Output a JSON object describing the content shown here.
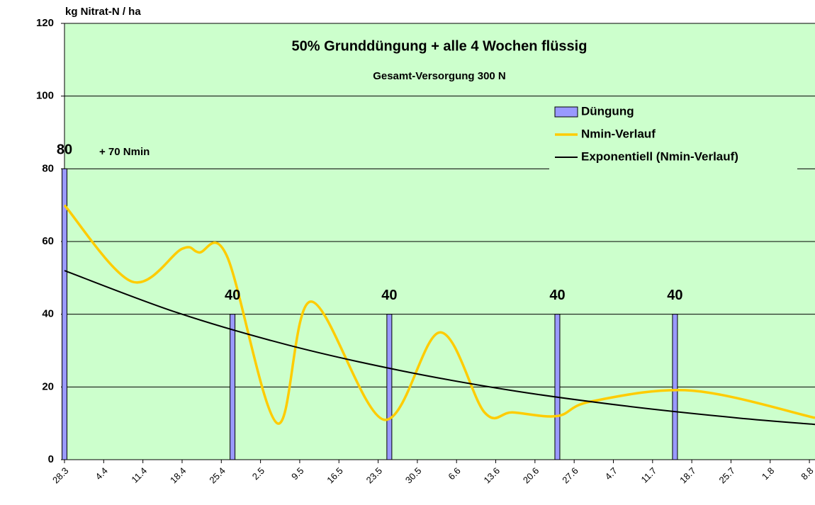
{
  "chart_data": {
    "type": "combo",
    "title": "50% Grunddüngung + alle 4 Wochen flüssig",
    "subtitle": "Gesamt-Versorgung 300 N",
    "y_label": "kg Nitrat-N / ha",
    "annotations": [
      "+ 70 Nmin"
    ],
    "xlim": [
      0,
      134
    ],
    "xticks": [
      {
        "value": 0,
        "label": "28.3"
      },
      {
        "value": 7,
        "label": "4.4"
      },
      {
        "value": 14,
        "label": "11.4"
      },
      {
        "value": 21,
        "label": "18.4"
      },
      {
        "value": 28,
        "label": "25.4"
      },
      {
        "value": 35,
        "label": "2.5"
      },
      {
        "value": 42,
        "label": "9.5"
      },
      {
        "value": 49,
        "label": "16.5"
      },
      {
        "value": 56,
        "label": "23.5"
      },
      {
        "value": 63,
        "label": "30.5"
      },
      {
        "value": 70,
        "label": "6.6"
      },
      {
        "value": 77,
        "label": "13.6"
      },
      {
        "value": 84,
        "label": "20.6"
      },
      {
        "value": 91,
        "label": "27.6"
      },
      {
        "value": 98,
        "label": "4.7"
      },
      {
        "value": 105,
        "label": "11.7"
      },
      {
        "value": 112,
        "label": "18.7"
      },
      {
        "value": 119,
        "label": "25.7"
      },
      {
        "value": 126,
        "label": "1.8"
      },
      {
        "value": 133,
        "label": "8.8"
      }
    ],
    "ylim": [
      0,
      120
    ],
    "yticks": [
      0,
      20,
      40,
      60,
      80,
      100,
      120
    ],
    "grid": true,
    "legend": "upper right",
    "series": [
      {
        "name": "Düngung",
        "type": "bar",
        "color": "#9999ff",
        "x": [
          0,
          30,
          58,
          88,
          109
        ],
        "values": [
          80,
          40,
          40,
          40,
          40
        ]
      },
      {
        "name": "Nmin-Verlauf",
        "type": "line",
        "color": "#ffcc00",
        "x": [
          0,
          12,
          21,
          24,
          29,
          38,
          44,
          57,
          67,
          75,
          80,
          88,
          94,
          112,
          134
        ],
        "values": [
          70,
          49,
          58,
          57,
          56,
          10,
          43.5,
          11,
          35,
          13,
          13,
          12,
          16,
          19,
          11.5
        ]
      },
      {
        "name": "Exponentiell (Nmin-Verlauf)",
        "type": "line",
        "color": "#000000",
        "x": [
          0,
          20,
          40,
          60,
          80,
          100,
          120,
          134
        ],
        "values": [
          52,
          40.5,
          31.5,
          24.5,
          19,
          14.8,
          11.5,
          9.7
        ]
      }
    ]
  }
}
